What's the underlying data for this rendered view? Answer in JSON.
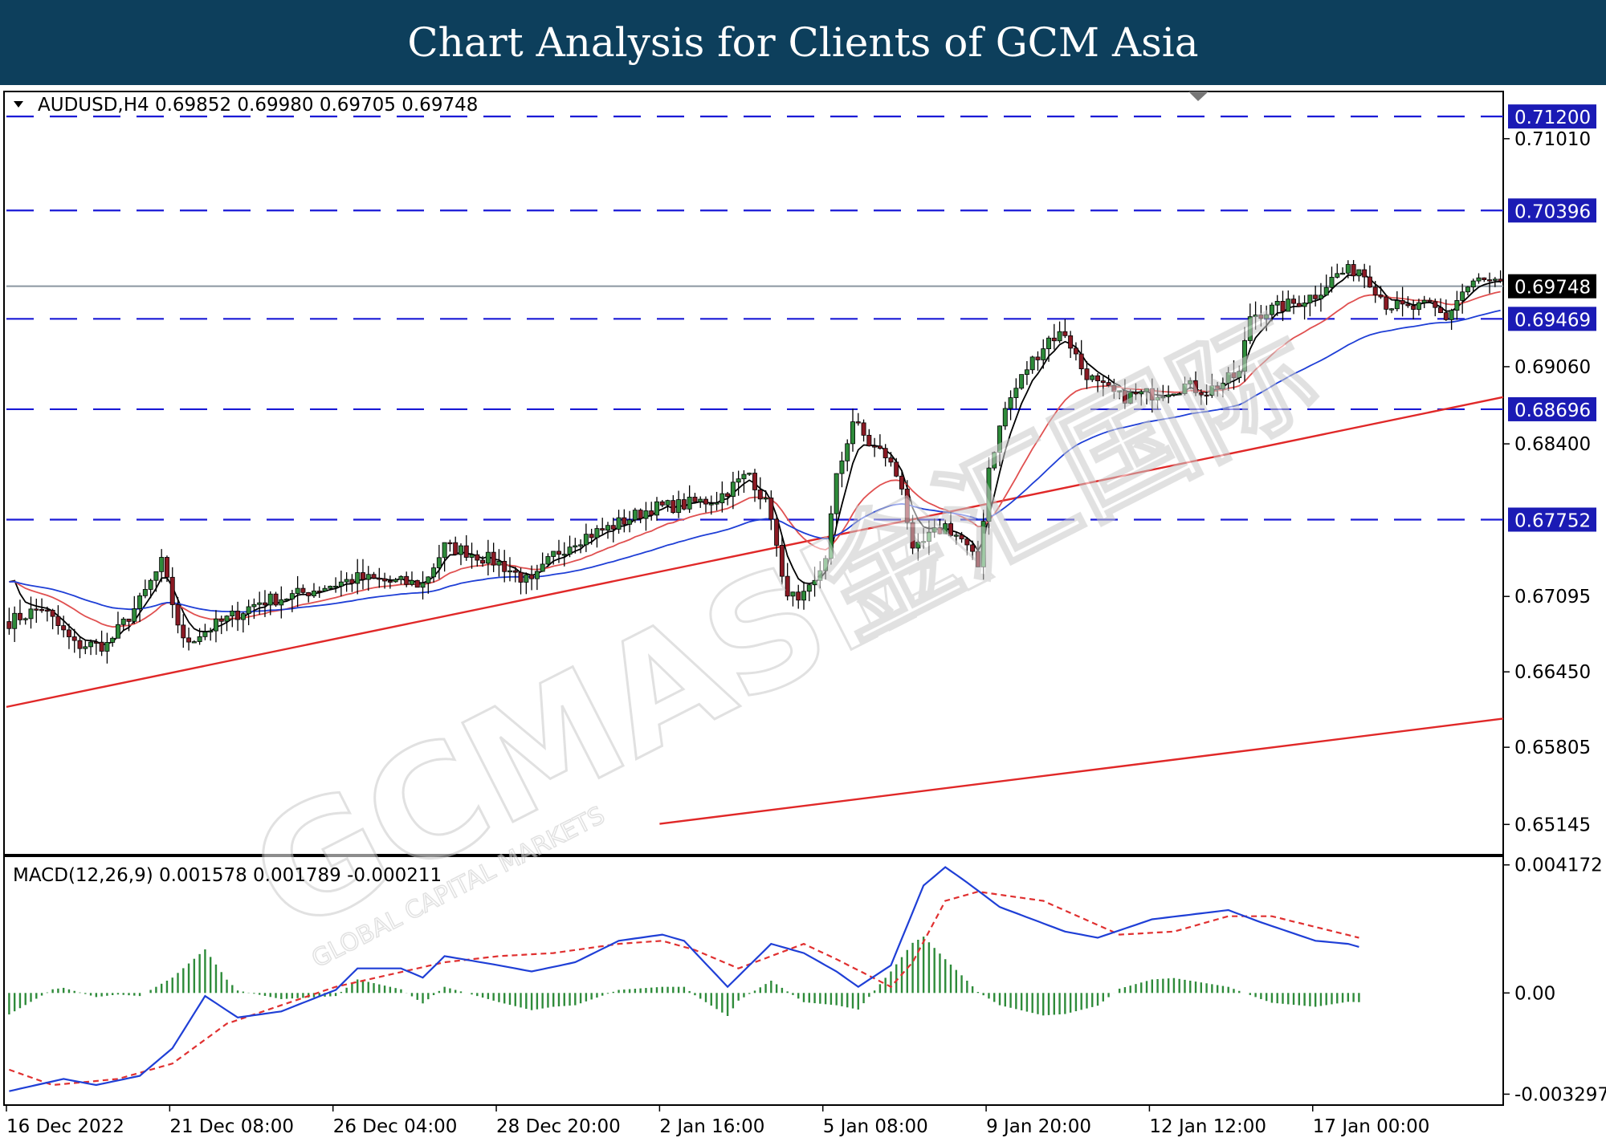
{
  "banner": {
    "title": "Chart Analysis for Clients of GCM Asia"
  },
  "watermark": {
    "brand": "GCMASIA",
    "tagline": "GLOBAL CAPITAL MARKETS",
    "chinese": "金汇国际"
  },
  "colors": {
    "banner": "#0d3f5c",
    "bull": "#2e8b3a",
    "bear": "#8b1a24",
    "level_line": "#1a1ad6",
    "ma_fast": "#000000",
    "ma_mid": "#e05050",
    "ma_slow": "#1f3fd6",
    "trendline": "#e02828",
    "macd_line": "#1f3fd6",
    "signal_line": "#e03030",
    "histogram": "#2e8b3a"
  },
  "chart_data": [
    {
      "type": "candlestick",
      "header": "AUDUSD,H4  0.69852 0.69980 0.69705 0.69748",
      "symbol": "AUDUSD",
      "timeframe": "H4",
      "ohlc": [
        0.69852,
        0.6998,
        0.69705,
        0.69748
      ],
      "ylim": [
        0.649,
        0.714
      ],
      "y_ticks": [
        "0.71010",
        "0.69060",
        "0.68400",
        "0.67095",
        "0.66450",
        "0.65805",
        "0.65145"
      ],
      "x_labels": [
        "16 Dec 2022",
        "21 Dec 08:00",
        "26 Dec 04:00",
        "28 Dec 20:00",
        "2 Jan 16:00",
        "5 Jan 08:00",
        "9 Jan 20:00",
        "12 Jan 12:00",
        "17 Jan 00:00"
      ],
      "level_lines": [
        0.712,
        0.70396,
        0.69469,
        0.68696,
        0.67752
      ],
      "level_labels": [
        "0.71200",
        "0.70396",
        "0.69469",
        "0.68696",
        "0.67752"
      ],
      "current_price": 0.69748,
      "current_label": "0.69748",
      "trendlines": [
        {
          "from": [
            0,
            0.6615
          ],
          "to": [
            345,
            0.688
          ]
        },
        {
          "from": [
            120,
            0.6515
          ],
          "to": [
            345,
            0.6605
          ]
        }
      ],
      "close_anchors": [
        [
          0,
          0.6688
        ],
        [
          6,
          0.67
        ],
        [
          12,
          0.6668
        ],
        [
          18,
          0.6668
        ],
        [
          24,
          0.6705
        ],
        [
          28,
          0.6738
        ],
        [
          32,
          0.667
        ],
        [
          36,
          0.668
        ],
        [
          40,
          0.669
        ],
        [
          46,
          0.6705
        ],
        [
          52,
          0.671
        ],
        [
          58,
          0.6718
        ],
        [
          64,
          0.6725
        ],
        [
          70,
          0.6722
        ],
        [
          76,
          0.672
        ],
        [
          80,
          0.6752
        ],
        [
          84,
          0.6748
        ],
        [
          90,
          0.6738
        ],
        [
          96,
          0.672
        ],
        [
          100,
          0.6745
        ],
        [
          104,
          0.6758
        ],
        [
          110,
          0.6768
        ],
        [
          118,
          0.6785
        ],
        [
          124,
          0.6788
        ],
        [
          130,
          0.6793
        ],
        [
          136,
          0.6815
        ],
        [
          140,
          0.678
        ],
        [
          142,
          0.6722
        ],
        [
          145,
          0.6702
        ],
        [
          148,
          0.672
        ],
        [
          150,
          0.6745
        ],
        [
          152,
          0.681
        ],
        [
          155,
          0.686
        ],
        [
          158,
          0.684
        ],
        [
          161,
          0.683
        ],
        [
          164,
          0.6805
        ],
        [
          166,
          0.6745
        ],
        [
          169,
          0.676
        ],
        [
          172,
          0.677
        ],
        [
          175,
          0.6758
        ],
        [
          178,
          0.6735
        ],
        [
          180,
          0.682
        ],
        [
          183,
          0.687
        ],
        [
          187,
          0.6905
        ],
        [
          191,
          0.693
        ],
        [
          194,
          0.6935
        ],
        [
          197,
          0.6905
        ],
        [
          200,
          0.689
        ],
        [
          204,
          0.688
        ],
        [
          210,
          0.6883
        ],
        [
          216,
          0.689
        ],
        [
          220,
          0.6885
        ],
        [
          226,
          0.69
        ],
        [
          228,
          0.695
        ],
        [
          232,
          0.6955
        ],
        [
          236,
          0.696
        ],
        [
          240,
          0.6968
        ],
        [
          244,
          0.6985
        ],
        [
          248,
          0.699
        ],
        [
          250,
          0.698
        ],
        [
          253,
          0.696
        ],
        [
          257,
          0.6955
        ],
        [
          261,
          0.6958
        ],
        [
          264,
          0.6948
        ],
        [
          267,
          0.697
        ],
        [
          270,
          0.698
        ],
        [
          274,
          0.6975
        ]
      ],
      "candle_count": 275
    },
    {
      "type": "macd",
      "header": "MACD(12,26,9) 0.001578 0.001789 -0.000211",
      "params": "12,26,9",
      "values": [
        0.001578,
        0.001789,
        -0.000211
      ],
      "ylim": [
        -0.0036,
        0.0044
      ],
      "y_ticks": [
        "0.004172",
        "0.00",
        "-0.003297"
      ],
      "macd_anchors": [
        [
          0,
          -0.0032
        ],
        [
          10,
          -0.0028
        ],
        [
          16,
          -0.003
        ],
        [
          24,
          -0.0027
        ],
        [
          30,
          -0.0018
        ],
        [
          36,
          -0.0001
        ],
        [
          42,
          -0.0008
        ],
        [
          50,
          -0.0006
        ],
        [
          60,
          0.0001
        ],
        [
          64,
          0.0008
        ],
        [
          72,
          0.0008
        ],
        [
          76,
          0.0005
        ],
        [
          80,
          0.0012
        ],
        [
          90,
          0.0009
        ],
        [
          96,
          0.0007
        ],
        [
          104,
          0.001
        ],
        [
          112,
          0.0017
        ],
        [
          120,
          0.0019
        ],
        [
          124,
          0.0017
        ],
        [
          132,
          0.0002
        ],
        [
          140,
          0.0016
        ],
        [
          146,
          0.0013
        ],
        [
          152,
          0.0007
        ],
        [
          156,
          0.0002
        ],
        [
          162,
          0.0009
        ],
        [
          168,
          0.0035
        ],
        [
          172,
          0.0041
        ],
        [
          176,
          0.0036
        ],
        [
          182,
          0.0028
        ],
        [
          194,
          0.002
        ],
        [
          200,
          0.0018
        ],
        [
          210,
          0.0024
        ],
        [
          224,
          0.0027
        ],
        [
          230,
          0.0023
        ],
        [
          240,
          0.0017
        ],
        [
          246,
          0.0016
        ],
        [
          248,
          0.0015
        ]
      ],
      "signal_anchors": [
        [
          0,
          -0.0025
        ],
        [
          8,
          -0.003
        ],
        [
          20,
          -0.0028
        ],
        [
          30,
          -0.0023
        ],
        [
          40,
          -0.001
        ],
        [
          50,
          -0.0004
        ],
        [
          60,
          0.0002
        ],
        [
          70,
          0.0006
        ],
        [
          80,
          0.001
        ],
        [
          90,
          0.0012
        ],
        [
          100,
          0.0013
        ],
        [
          112,
          0.0016
        ],
        [
          120,
          0.0017
        ],
        [
          126,
          0.0014
        ],
        [
          134,
          0.0008
        ],
        [
          146,
          0.0016
        ],
        [
          152,
          0.0011
        ],
        [
          162,
          0.0002
        ],
        [
          166,
          0.001
        ],
        [
          172,
          0.003
        ],
        [
          178,
          0.0033
        ],
        [
          190,
          0.003
        ],
        [
          204,
          0.0019
        ],
        [
          214,
          0.002
        ],
        [
          224,
          0.0025
        ],
        [
          232,
          0.0025
        ],
        [
          248,
          0.0018
        ]
      ]
    }
  ]
}
